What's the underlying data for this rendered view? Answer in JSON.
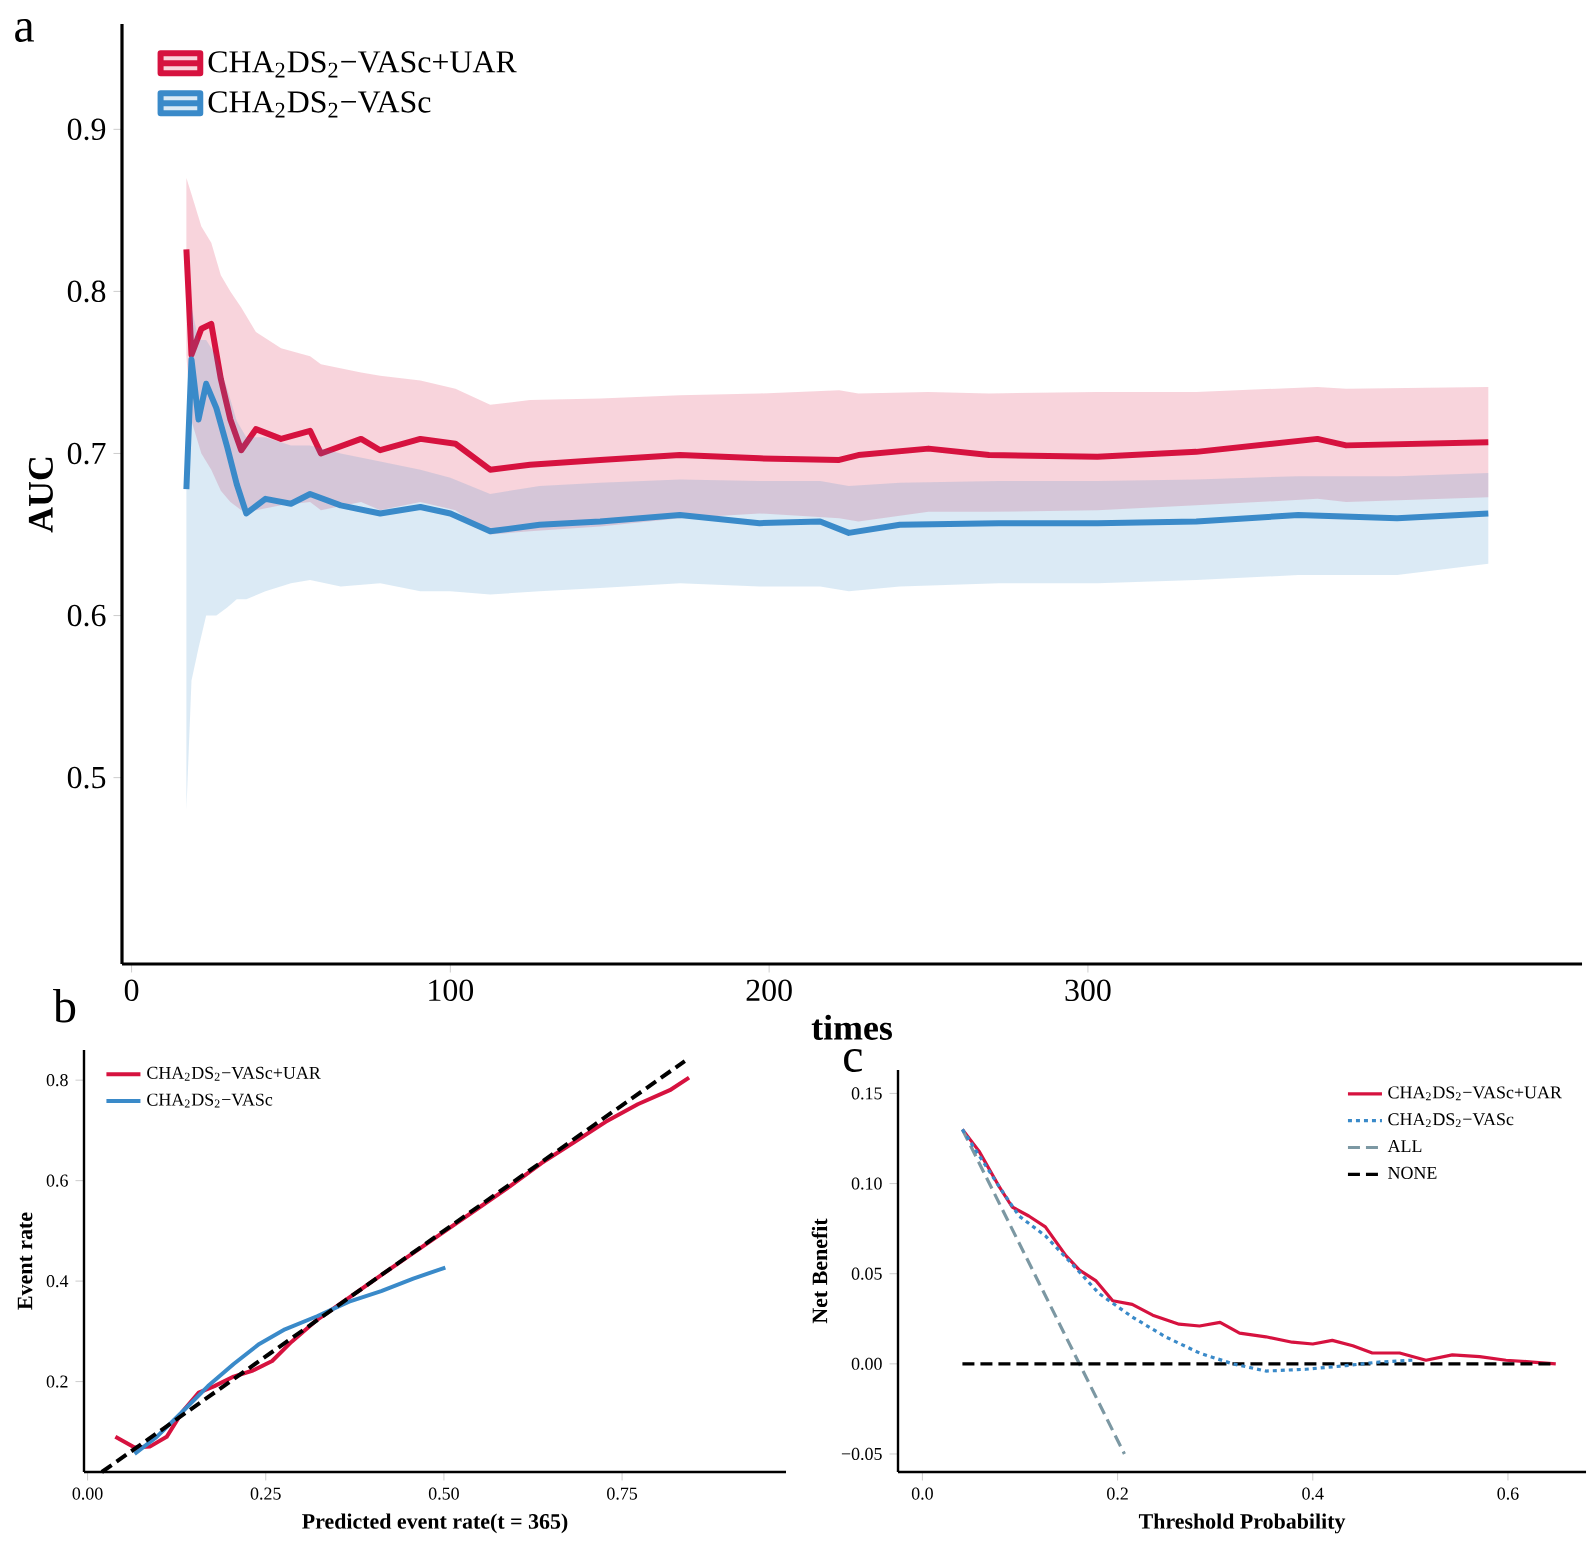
{
  "chart_data": [
    {
      "type": "line",
      "title": "a",
      "xlabel": "times",
      "ylabel": "AUC",
      "xlim": [
        -3,
        455
      ],
      "ylim": [
        0.385,
        0.965
      ],
      "xticks": [
        0,
        100,
        200,
        300
      ],
      "yticks": [
        0.5,
        0.6,
        0.7,
        0.8,
        0.9
      ],
      "legend": "top left",
      "series": [
        {
          "name": "CHA$_{2}$DS$_{2}$−VASc+UAR",
          "color": "#d6123f",
          "x": [
            17.2,
            18.8,
            21.9,
            25,
            28,
            31,
            34.4,
            39,
            46.9,
            56,
            59.4,
            72,
            78,
            90.6,
            101.6,
            112.5,
            125,
            147,
            172,
            197,
            222,
            228,
            250,
            269,
            303,
            334,
            372,
            381,
            425.6
          ],
          "values": [
            0.826,
            0.761,
            0.777,
            0.78,
            0.746,
            0.721,
            0.702,
            0.715,
            0.709,
            0.714,
            0.7,
            0.709,
            0.702,
            0.709,
            0.706,
            0.69,
            0.693,
            0.696,
            0.699,
            0.697,
            0.696,
            0.699,
            0.703,
            0.699,
            0.698,
            0.701,
            0.709,
            0.705,
            0.707
          ],
          "upper": [
            0.87,
            0.86,
            0.84,
            0.83,
            0.81,
            0.8,
            0.79,
            0.775,
            0.765,
            0.76,
            0.755,
            0.75,
            0.748,
            0.745,
            0.74,
            0.73,
            0.733,
            0.734,
            0.736,
            0.737,
            0.739,
            0.737,
            0.738,
            0.737,
            0.738,
            0.738,
            0.741,
            0.74,
            0.741
          ],
          "lower": [
            0.76,
            0.72,
            0.7,
            0.69,
            0.677,
            0.67,
            0.665,
            0.665,
            0.668,
            0.67,
            0.665,
            0.67,
            0.665,
            0.67,
            0.665,
            0.65,
            0.652,
            0.655,
            0.66,
            0.663,
            0.66,
            0.658,
            0.664,
            0.664,
            0.665,
            0.668,
            0.672,
            0.67,
            0.673
          ]
        },
        {
          "name": "CHA$_{2}$DS$_{2}$−VASc",
          "color": "#3a8ac9",
          "x": [
            17.2,
            18.8,
            21,
            23.4,
            26.6,
            30,
            33,
            36,
            42,
            50,
            56,
            65.6,
            78,
            90.6,
            100,
            112.5,
            128,
            147,
            172,
            197,
            216,
            225,
            241,
            272,
            303,
            334,
            366,
            397,
            425.6
          ],
          "values": [
            0.678,
            0.758,
            0.721,
            0.743,
            0.728,
            0.704,
            0.681,
            0.663,
            0.672,
            0.669,
            0.675,
            0.668,
            0.663,
            0.667,
            0.663,
            0.652,
            0.656,
            0.658,
            0.662,
            0.657,
            0.658,
            0.651,
            0.656,
            0.657,
            0.657,
            0.658,
            0.662,
            0.66,
            0.663
          ],
          "upper": [
            0.7,
            0.79,
            0.77,
            0.77,
            0.76,
            0.74,
            0.72,
            0.71,
            0.71,
            0.705,
            0.705,
            0.7,
            0.695,
            0.69,
            0.685,
            0.675,
            0.68,
            0.682,
            0.684,
            0.683,
            0.683,
            0.68,
            0.682,
            0.683,
            0.683,
            0.684,
            0.686,
            0.686,
            0.688
          ],
          "lower": [
            0.48,
            0.56,
            0.58,
            0.6,
            0.6,
            0.605,
            0.61,
            0.61,
            0.615,
            0.62,
            0.622,
            0.618,
            0.62,
            0.615,
            0.615,
            0.613,
            0.615,
            0.617,
            0.62,
            0.618,
            0.618,
            0.615,
            0.618,
            0.62,
            0.62,
            0.622,
            0.625,
            0.625,
            0.632
          ]
        }
      ]
    },
    {
      "type": "line",
      "title": "b",
      "xlabel": "Predicted event rate(t = 365)",
      "ylabel": "Event rate",
      "xlim": [
        -0.005,
        0.98
      ],
      "ylim": [
        0.02,
        0.86
      ],
      "xticks": [
        {
          "value": 0,
          "label": "0.00"
        },
        {
          "value": 0.25,
          "label": "0.25"
        },
        {
          "value": 0.5,
          "label": "0.50"
        },
        {
          "value": 0.75,
          "label": "0.75"
        }
      ],
      "yticks": [
        0.2,
        0.4,
        0.6,
        0.8
      ],
      "legend": "top left",
      "series": [
        {
          "color": "#000000",
          "line_style": "dashed",
          "x": [
            0.02,
            0.838
          ],
          "values": [
            0.02,
            0.838
          ]
        },
        {
          "name": "CHA$_{2}$DS$_{2}$−VASc+UAR",
          "color": "#d6123f",
          "x": [
            0.039,
            0.066,
            0.088,
            0.111,
            0.133,
            0.156,
            0.178,
            0.205,
            0.232,
            0.259,
            0.286,
            0.322,
            0.367,
            0.412,
            0.457,
            0.502,
            0.547,
            0.592,
            0.637,
            0.682,
            0.727,
            0.772,
            0.817,
            0.844
          ],
          "values": [
            0.09,
            0.069,
            0.071,
            0.09,
            0.14,
            0.178,
            0.191,
            0.21,
            0.222,
            0.241,
            0.279,
            0.323,
            0.367,
            0.412,
            0.456,
            0.5,
            0.544,
            0.588,
            0.635,
            0.676,
            0.717,
            0.752,
            0.78,
            0.805
          ]
        },
        {
          "name": "CHA$_{2}$DS$_{2}$−VASc",
          "color": "#3a8ac9",
          "x": [
            0.066,
            0.097,
            0.133,
            0.169,
            0.205,
            0.241,
            0.277,
            0.322,
            0.367,
            0.412,
            0.457,
            0.502
          ],
          "values": [
            0.056,
            0.09,
            0.14,
            0.191,
            0.235,
            0.275,
            0.304,
            0.33,
            0.359,
            0.38,
            0.405,
            0.427
          ]
        }
      ]
    },
    {
      "type": "line",
      "title": "c",
      "xlabel": "Threshold Probability",
      "ylabel": "Net Benefit",
      "xlim": [
        -0.025,
        0.68
      ],
      "ylim": [
        -0.06,
        0.163
      ],
      "xticks": [
        {
          "value": 0,
          "label": "0.0"
        },
        0.2,
        0.4,
        0.6
      ],
      "yticks": [
        {
          "value": -0.05,
          "label": "−0.05"
        },
        {
          "value": 0,
          "label": "0.00"
        },
        0.05,
        {
          "value": 0.1,
          "label": "0.10"
        },
        0.15
      ],
      "legend": "top right",
      "series": [
        {
          "name": "CHA$_{2}$DS$_{2}$−VASc+UAR",
          "color": "#d6123f",
          "line_style": "solid",
          "x": [
            0.041,
            0.058,
            0.079,
            0.092,
            0.109,
            0.126,
            0.147,
            0.161,
            0.178,
            0.195,
            0.215,
            0.236,
            0.263,
            0.284,
            0.305,
            0.325,
            0.352,
            0.379,
            0.4,
            0.42,
            0.441,
            0.461,
            0.489,
            0.516,
            0.543,
            0.571,
            0.598,
            0.625,
            0.649
          ],
          "values": [
            0.13,
            0.118,
            0.098,
            0.087,
            0.082,
            0.076,
            0.06,
            0.052,
            0.046,
            0.035,
            0.033,
            0.027,
            0.022,
            0.021,
            0.023,
            0.017,
            0.015,
            0.012,
            0.011,
            0.013,
            0.01,
            0.006,
            0.006,
            0.002,
            0.005,
            0.004,
            0.002,
            0.001,
            0.0
          ]
        },
        {
          "name": "CHA$_{2}$DS$_{2}$−VASc",
          "color": "#3a8ac9",
          "line_style": "dotted",
          "x": [
            0.041,
            0.079,
            0.099,
            0.126,
            0.154,
            0.181,
            0.215,
            0.249,
            0.284,
            0.318,
            0.352,
            0.393,
            0.434,
            0.468,
            0.502
          ],
          "values": [
            0.13,
            0.098,
            0.082,
            0.071,
            0.055,
            0.039,
            0.026,
            0.015,
            0.006,
            0.0,
            -0.004,
            -0.003,
            -0.001,
            0.001,
            0.002
          ]
        },
        {
          "name": "ALL",
          "color": "#7c98a3",
          "line_style": "dashed",
          "x": [
            0.041,
            0.207
          ],
          "values": [
            0.13,
            -0.05
          ]
        },
        {
          "name": "NONE",
          "color": "#000000",
          "line_style": "dashed",
          "x": [
            0.041,
            0.649
          ],
          "values": [
            0.0,
            0.0
          ]
        }
      ]
    }
  ]
}
